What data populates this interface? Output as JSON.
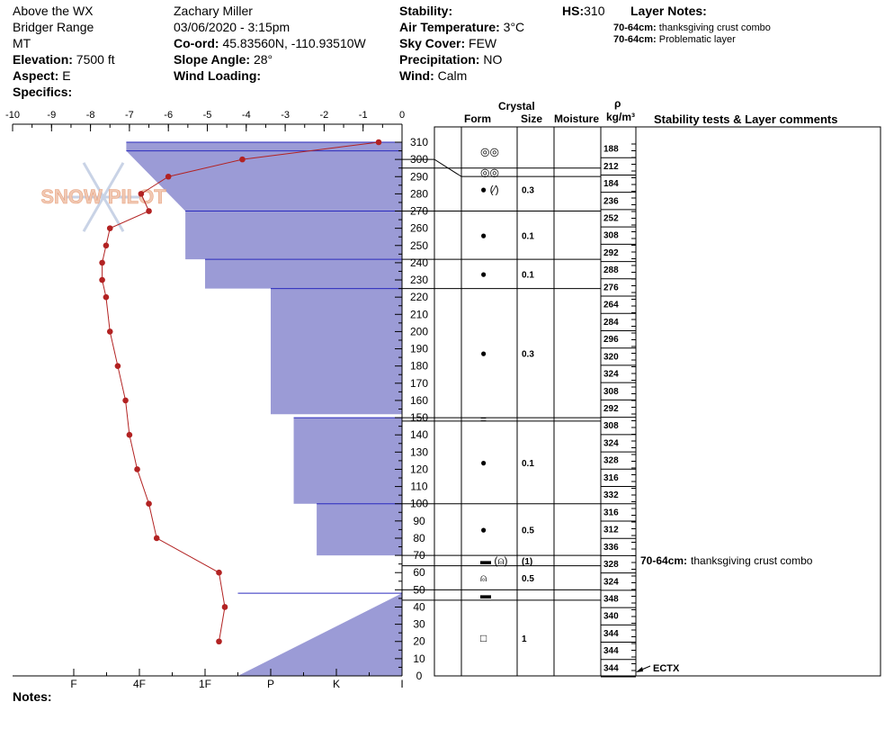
{
  "header": {
    "location": "Above the WX",
    "range": "Bridger Range",
    "state": "MT",
    "elevation_label": "Elevation:",
    "elevation_value": "7500 ft",
    "aspect_label": "Aspect:",
    "aspect_value": "E",
    "specifics_label": "Specifics:",
    "observer": "Zachary Miller",
    "datetime": "03/06/2020 - 3:15pm",
    "coord_label": "Co-ord:",
    "coord_value": "45.83560N, -110.93510W",
    "slope_label": "Slope Angle:",
    "slope_value": "28°",
    "wind_loading_label": "Wind Loading:",
    "stability_label": "Stability:",
    "air_temp_label": "Air Temperature:",
    "air_temp_value": "3°C",
    "sky_label": "Sky Cover:",
    "sky_value": "FEW",
    "precip_label": "Precipitation:",
    "precip_value": "NO",
    "wind_label": "Wind:",
    "wind_value": "Calm",
    "hs_label": "HS:",
    "hs_value": "310",
    "layer_notes_label": "Layer Notes:",
    "layer_notes": [
      {
        "range": "70-64cm:",
        "text": "thanksgiving crust combo"
      },
      {
        "range": "70-64cm:",
        "text": "Problematic layer"
      }
    ]
  },
  "watermark": "SNOW PILOT",
  "columns": {
    "crystal": "Crystal",
    "form": "Form",
    "size": "Size",
    "moisture": "Moisture",
    "rho": "ρ",
    "density_unit": "kg/m³",
    "stability_comments": "Stability tests & Layer comments"
  },
  "notes_label": "Notes:",
  "chart_data": {
    "type": "snow_profile",
    "temperature_axis": {
      "ticks": [
        "-10",
        "-9",
        "-8",
        "-7",
        "-6",
        "-5",
        "-4",
        "-3",
        "-2",
        "-1",
        "0"
      ],
      "range": [
        -10,
        0
      ]
    },
    "hardness_axis": {
      "ticks": [
        "I",
        "K",
        "P",
        "1F",
        "4F",
        "F"
      ]
    },
    "depth_axis": {
      "ticks": [
        "310",
        "300",
        "290",
        "280",
        "270",
        "260",
        "250",
        "240",
        "230",
        "220",
        "210",
        "200",
        "190",
        "180",
        "170",
        "160",
        "150",
        "140",
        "130",
        "120",
        "110",
        "100",
        "90",
        "80",
        "70",
        "60",
        "50",
        "40",
        "30",
        "20",
        "10",
        "0"
      ],
      "range": [
        0,
        310
      ]
    },
    "temperature_profile": [
      {
        "depth": 310,
        "temp": -0.6
      },
      {
        "depth": 300,
        "temp": -4.1
      },
      {
        "depth": 290,
        "temp": -6.0
      },
      {
        "depth": 280,
        "temp": -6.7
      },
      {
        "depth": 270,
        "temp": -6.5
      },
      {
        "depth": 260,
        "temp": -7.5
      },
      {
        "depth": 250,
        "temp": -7.6
      },
      {
        "depth": 240,
        "temp": -7.7
      },
      {
        "depth": 230,
        "temp": -7.7
      },
      {
        "depth": 220,
        "temp": -7.6
      },
      {
        "depth": 200,
        "temp": -7.5
      },
      {
        "depth": 180,
        "temp": -7.3
      },
      {
        "depth": 160,
        "temp": -7.1
      },
      {
        "depth": 140,
        "temp": -7.0
      },
      {
        "depth": 120,
        "temp": -6.8
      },
      {
        "depth": 100,
        "temp": -6.5
      },
      {
        "depth": 80,
        "temp": -6.3
      },
      {
        "depth": 60,
        "temp": -4.7
      },
      {
        "depth": 40,
        "temp": -4.55
      },
      {
        "depth": 20,
        "temp": -4.7
      }
    ],
    "hardness_profile": [
      {
        "top": 310,
        "bottom": 305,
        "hardness": 3.2
      },
      {
        "top": 305,
        "bottom": 270,
        "hardness": 3.2,
        "hardness_bottom": 2.3
      },
      {
        "top": 270,
        "bottom": 242,
        "hardness": 2.3
      },
      {
        "top": 242,
        "bottom": 225,
        "hardness": 2.0
      },
      {
        "top": 225,
        "bottom": 152,
        "hardness": 1.0
      },
      {
        "top": 152,
        "bottom": 150,
        "hardness": -1.0
      },
      {
        "top": 150,
        "bottom": 100,
        "hardness": 0.65
      },
      {
        "top": 100,
        "bottom": 70,
        "hardness": 0.3
      },
      {
        "top": 70,
        "bottom": 64,
        "hardness": -1.0
      },
      {
        "top": 64,
        "bottom": 50,
        "hardness": -1.0
      },
      {
        "top": 50,
        "bottom": 48,
        "hardness": -1.0
      },
      {
        "top": 48,
        "bottom": 0,
        "hardness": -1.0,
        "hardness_bottom": 1.5
      }
    ],
    "layers": [
      {
        "top": 310,
        "bottom": 300,
        "form": "◎◎",
        "size": ""
      },
      {
        "top": 300,
        "bottom": 295,
        "form": "◎◎",
        "size": ""
      },
      {
        "top": 295,
        "bottom": 270,
        "form": "● (⁄)",
        "size": "0.3"
      },
      {
        "top": 270,
        "bottom": 242,
        "form": "●",
        "size": "0.1"
      },
      {
        "top": 242,
        "bottom": 225,
        "form": "●",
        "size": "0.1"
      },
      {
        "top": 225,
        "bottom": 150,
        "form": "●",
        "size": "0.3"
      },
      {
        "top": 150,
        "bottom": 148,
        "form": "=",
        "size": ""
      },
      {
        "top": 148,
        "bottom": 100,
        "form": "●",
        "size": "0.1"
      },
      {
        "top": 100,
        "bottom": 70,
        "form": "●",
        "size": "0.5"
      },
      {
        "top": 70,
        "bottom": 64,
        "form": "▬ (⍝)",
        "size": "(1)"
      },
      {
        "top": 64,
        "bottom": 50,
        "form": "⍝",
        "size": "0.5"
      },
      {
        "top": 50,
        "bottom": 44,
        "form": "▬",
        "size": ""
      },
      {
        "top": 44,
        "bottom": 0,
        "form": "□",
        "size": "1"
      }
    ],
    "densities": [
      "188",
      "212",
      "184",
      "236",
      "252",
      "308",
      "292",
      "288",
      "276",
      "264",
      "284",
      "296",
      "320",
      "324",
      "308",
      "292",
      "308",
      "324",
      "328",
      "316",
      "332",
      "316",
      "312",
      "336",
      "328",
      "324",
      "348",
      "340",
      "344",
      "344",
      "344"
    ],
    "comments": [
      {
        "label": "70-64cm:",
        "text": "thanksgiving crust combo"
      }
    ],
    "test_label": "ECTX"
  }
}
